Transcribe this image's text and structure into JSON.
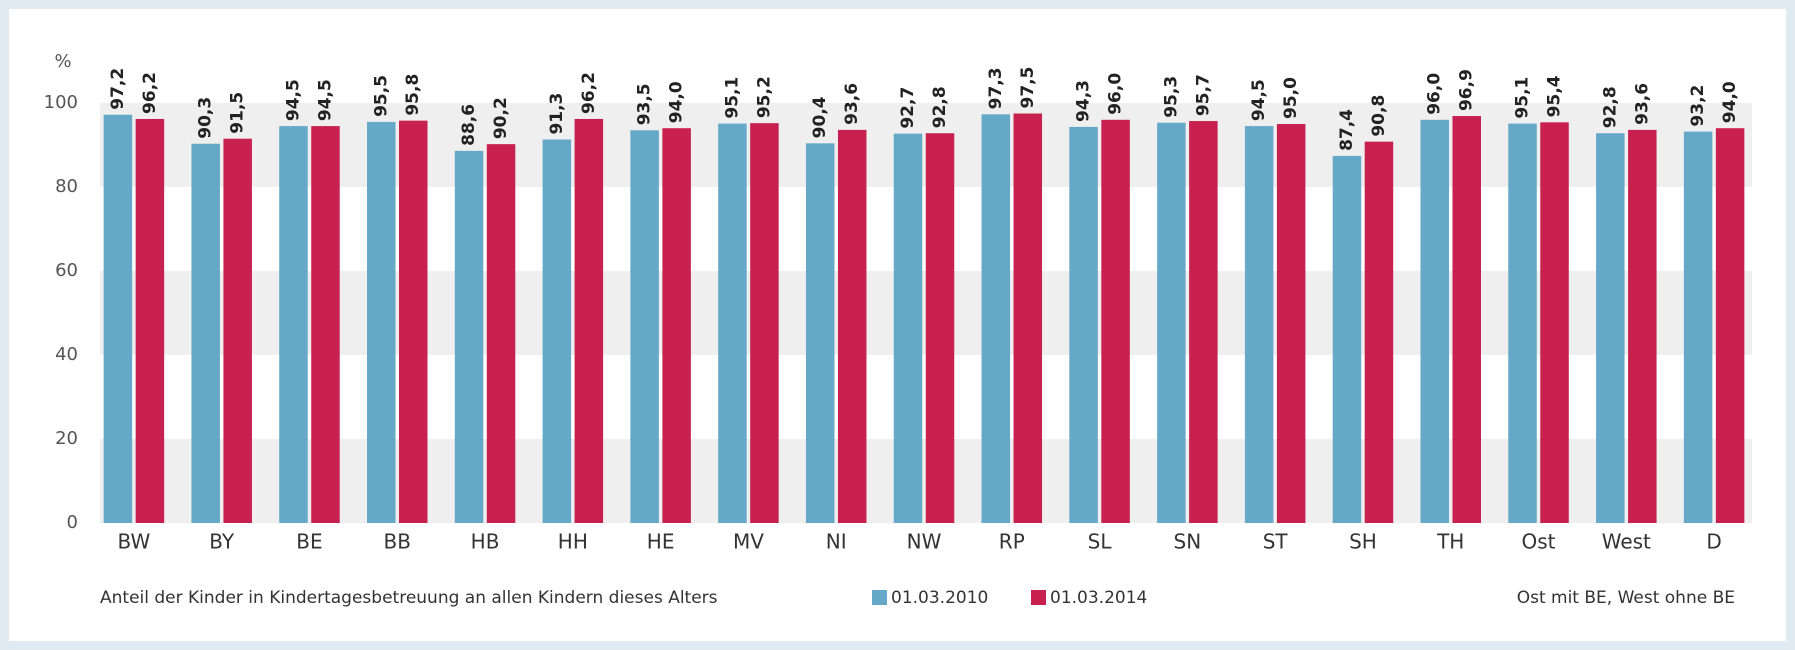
{
  "chart_data": {
    "type": "bar",
    "y_unit": "%",
    "categories": [
      "BW",
      "BY",
      "BE",
      "BB",
      "HB",
      "HH",
      "HE",
      "MV",
      "NI",
      "NW",
      "RP",
      "SL",
      "SN",
      "ST",
      "SH",
      "TH",
      "Ost",
      "West",
      "D"
    ],
    "category_colors": [
      "#222",
      "#222",
      "#222",
      "#222",
      "#222",
      "#222",
      "#222",
      "#222",
      "#222",
      "#222",
      "#222",
      "#222",
      "#222",
      "#222",
      "#222",
      "#222",
      "#888",
      "#888",
      "#888"
    ],
    "series": [
      {
        "name": "01.03.2010",
        "color": "#65a8c8",
        "values": [
          97.2,
          90.3,
          94.5,
          95.5,
          88.6,
          91.3,
          93.5,
          95.1,
          90.4,
          92.7,
          97.3,
          94.3,
          95.3,
          94.5,
          87.4,
          96.0,
          95.1,
          92.8,
          93.2
        ],
        "value_labels": [
          "97,2",
          "90,3",
          "94,5",
          "95,5",
          "88,6",
          "91,3",
          "93,5",
          "95,1",
          "90,4",
          "92,7",
          "97,3",
          "94,3",
          "95,3",
          "94,5",
          "87,4",
          "96,0",
          "95,1",
          "92,8",
          "93,2"
        ]
      },
      {
        "name": "01.03.2014",
        "color": "#c8204f",
        "values": [
          96.2,
          91.5,
          94.5,
          95.8,
          90.2,
          96.2,
          94.0,
          95.2,
          93.6,
          92.8,
          97.5,
          96.0,
          95.7,
          95.0,
          90.8,
          96.9,
          95.4,
          93.6,
          94.0
        ],
        "value_labels": [
          "96,2",
          "91,5",
          "94,5",
          "95,8",
          "90,2",
          "96,2",
          "94,0",
          "95,2",
          "93,6",
          "92,8",
          "97,5",
          "96,0",
          "95,7",
          "95,0",
          "90,8",
          "96,9",
          "95,4",
          "93,6",
          "94,0"
        ]
      }
    ],
    "ylim": [
      0,
      100
    ],
    "yticks": [
      0,
      20,
      40,
      60,
      80,
      100
    ],
    "grid_bands": true,
    "caption": "Anteil der Kinder in Kindertagesbetreuung an allen Kindern dieses Alters",
    "note": "Ost mit BE, West ohne BE"
  }
}
